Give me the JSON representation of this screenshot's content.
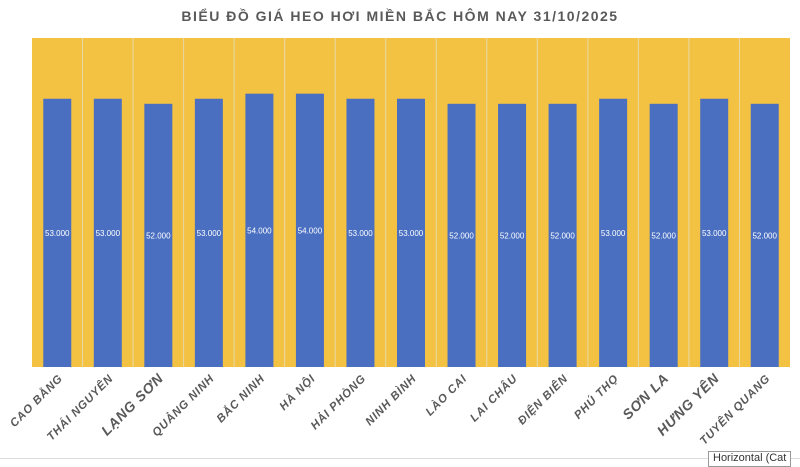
{
  "chart_data": {
    "type": "bar",
    "title": "BIỂU ĐỒ GIÁ HEO HƠI MIỀN BẮC HÔM NAY 31/10/2025",
    "categories": [
      "CAO BẰNG",
      "THÁI NGUYÊN",
      "LẠNG SƠN",
      "QUẢNG NINH",
      "BẮC NINH",
      "HÀ NỘI",
      "HẢI PHÒNG",
      "NINH BÌNH",
      "LÀO CAI",
      "LAI CHÂU",
      "ĐIỆN BIÊN",
      "PHÚ THỌ",
      "SƠN LA",
      "HƯNG YÊN",
      "TUYÊN QUANG"
    ],
    "values": [
      53000,
      53000,
      52000,
      53000,
      54000,
      54000,
      53000,
      53000,
      52000,
      52000,
      52000,
      53000,
      52000,
      53000,
      52000
    ],
    "data_labels": [
      "53.000",
      "53.000",
      "52.000",
      "53.000",
      "54.000",
      "54.000",
      "53.000",
      "53.000",
      "52.000",
      "52.000",
      "52.000",
      "53.000",
      "52.000",
      "53.000",
      "52.000"
    ],
    "ylim": [
      0,
      65000
    ],
    "grid": "vertical category separators",
    "legend": "none",
    "colors": {
      "bar": "#4A6FC1",
      "plot_background": "#F4C242",
      "label": "#595959"
    }
  },
  "tooltip": "Horizontal (Cat"
}
